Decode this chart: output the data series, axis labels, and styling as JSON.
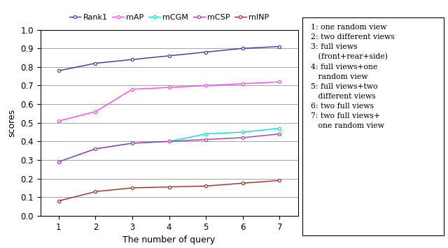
{
  "x": [
    1,
    2,
    3,
    4,
    5,
    6,
    7
  ],
  "Rank1": [
    0.78,
    0.82,
    0.84,
    0.86,
    0.88,
    0.9,
    0.91
  ],
  "mAP": [
    0.51,
    0.56,
    0.68,
    0.69,
    0.7,
    0.71,
    0.72
  ],
  "mCGM": [
    0.29,
    0.36,
    0.39,
    0.4,
    0.44,
    0.45,
    0.47
  ],
  "mCSP": [
    0.29,
    0.36,
    0.39,
    0.4,
    0.41,
    0.42,
    0.44
  ],
  "mINP": [
    0.08,
    0.13,
    0.15,
    0.155,
    0.16,
    0.175,
    0.19
  ],
  "colors": {
    "Rank1": "#3333aa",
    "mAP": "#ff44ff",
    "mCGM": "#00dddd",
    "mCSP": "#aa33aa",
    "mINP": "#aa2222"
  },
  "xlabel": "The number of query",
  "ylabel": "scores",
  "ylim": [
    0,
    1.0
  ],
  "yticks": [
    0,
    0.1,
    0.2,
    0.3,
    0.4,
    0.5,
    0.6,
    0.7,
    0.8,
    0.9,
    1
  ],
  "xticks": [
    1,
    2,
    3,
    4,
    5,
    6,
    7
  ],
  "legend_labels": [
    "Rank1",
    "mAP",
    "mCGM",
    "mCSP",
    "mINP"
  ],
  "annotation_text": "1: one random view\n2: two different views\n3: full views\n   (front+rear+side)\n4: full views+one\n   random view\n5: full views+two\n   different views\n6: two full views\n7: two full views+\n   one random view"
}
